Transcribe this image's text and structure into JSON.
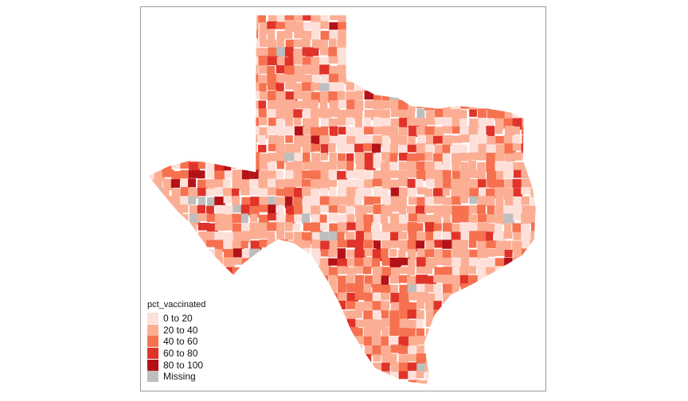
{
  "legend": {
    "title": "pct_vaccinated",
    "items": [
      {
        "label": "0 to 20",
        "color": "#fde0d9"
      },
      {
        "label": "20 to 40",
        "color": "#fcae94"
      },
      {
        "label": "40 to 60",
        "color": "#f6714f"
      },
      {
        "label": "60 to 80",
        "color": "#e0332a"
      },
      {
        "label": "80 to 100",
        "color": "#b31218"
      },
      {
        "label": "Missing",
        "color": "#bebebe"
      }
    ]
  },
  "colors": {
    "frame_border": "#9a9a9a",
    "background": "#ffffff"
  }
}
